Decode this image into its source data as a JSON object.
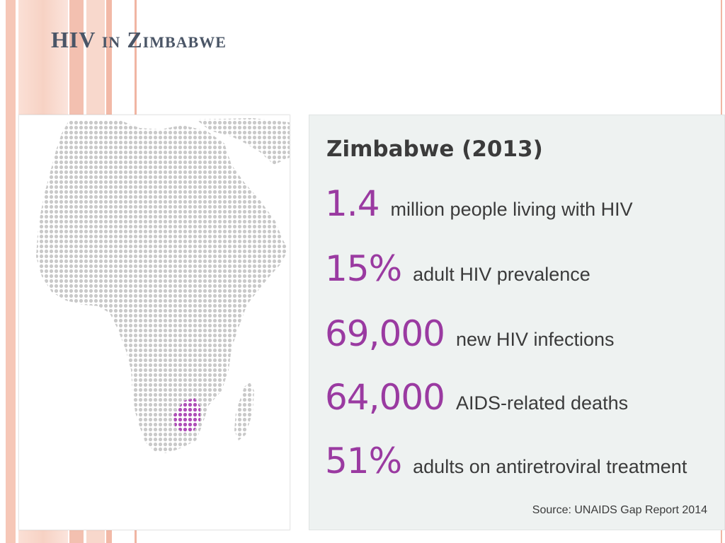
{
  "slide": {
    "title": "HIV in Zimbabwe"
  },
  "map": {
    "highlighted_country": "Zimbabwe",
    "colors": {
      "dots": "#c9c9c9",
      "highlight": "#b04db8"
    }
  },
  "stats": {
    "heading": "Zimbabwe (2013)",
    "items": [
      {
        "value": "1.4",
        "label": "million people living with HIV"
      },
      {
        "value": "15%",
        "label": "adult HIV prevalence"
      },
      {
        "value": "69,000",
        "label": "new HIV infections"
      },
      {
        "value": "64,000",
        "label": "AIDS-related deaths"
      },
      {
        "value": "51%",
        "label": "adults on antiretroviral treatment"
      }
    ],
    "source": "Source: UNAIDS Gap Report 2014",
    "colors": {
      "value": "#9a3aa1",
      "text": "#3b3b3b",
      "panel_bg": "#eef2f1"
    }
  }
}
